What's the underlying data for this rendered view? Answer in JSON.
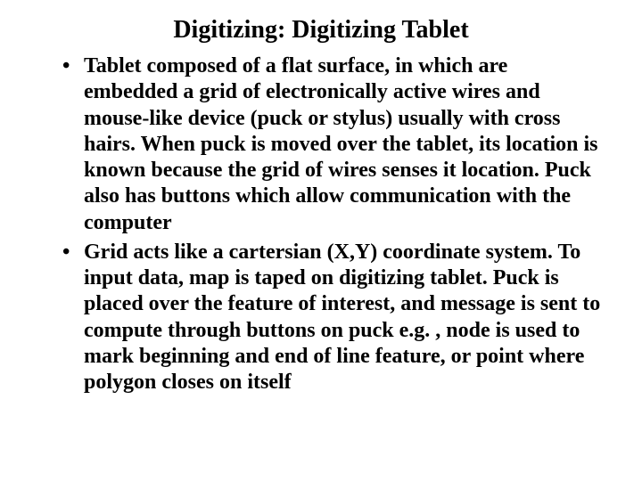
{
  "slide": {
    "title": "Digitizing: Digitizing Tablet",
    "bullets": [
      "Tablet composed of a flat surface, in which are embedded a grid of electronically active wires and mouse-like device (puck or stylus) usually with cross hairs. When puck is moved over the tablet, its location is known because the grid of wires senses it location. Puck also has buttons which allow communication with the computer",
      "Grid acts like a cartersian (X,Y) coordinate system. To input data, map is taped on digitizing tablet. Puck is placed over the feature of interest, and message is sent to compute through buttons on puck e.g. , node is used to mark beginning and end of line feature, or point where polygon closes on itself"
    ]
  },
  "style": {
    "background_color": "#ffffff",
    "text_color": "#000000",
    "font_family": "Times New Roman",
    "title_fontsize": 28,
    "title_fontweight": "bold",
    "body_fontsize": 24,
    "body_fontweight": "bold",
    "bullet_marker": "•",
    "line_height": 1.22,
    "slide_width": 720,
    "slide_height": 540
  }
}
